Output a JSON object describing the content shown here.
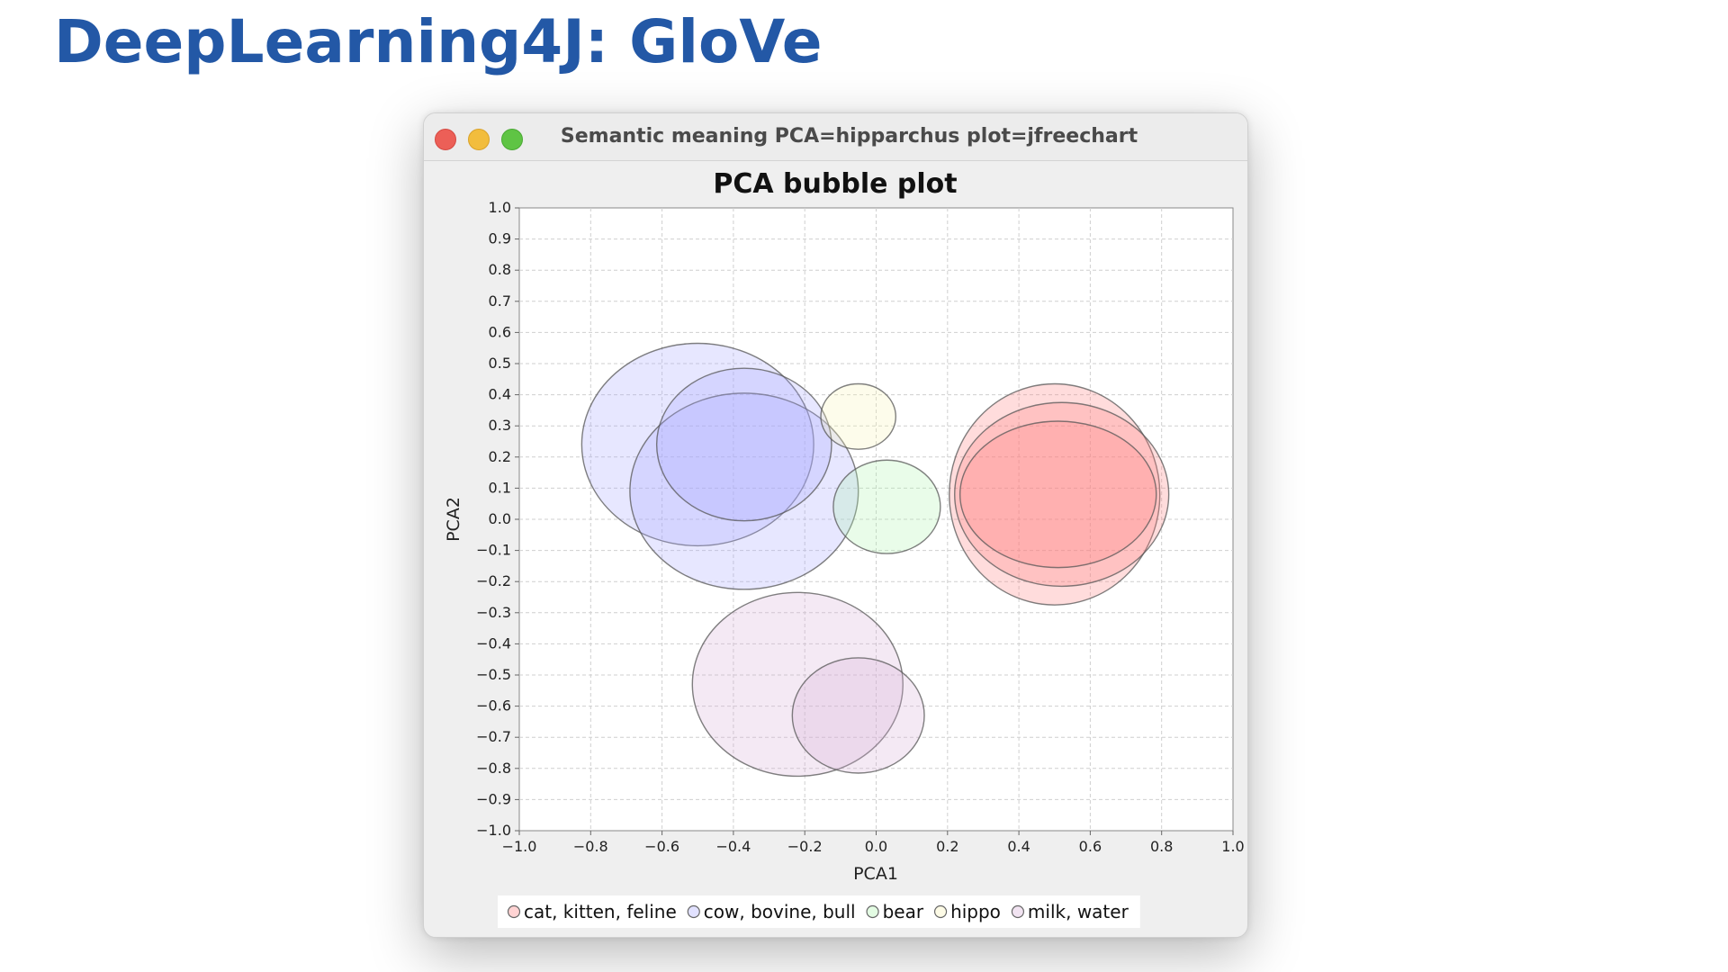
{
  "slide": {
    "title": "DeepLearning4J: GloVe"
  },
  "window": {
    "title": "Semantic meaning PCA=hipparchus plot=jfreechart"
  },
  "chart_data": {
    "type": "bubble",
    "title": "PCA bubble plot",
    "xlabel": "PCA1",
    "ylabel": "PCA2",
    "xlim": [
      -1.0,
      1.0
    ],
    "ylim": [
      -1.0,
      1.0
    ],
    "xticks": [
      "−1.0",
      "−0.8",
      "−0.6",
      "−0.4",
      "−0.2",
      "0.0",
      "0.2",
      "0.4",
      "0.6",
      "0.8",
      "1.0"
    ],
    "yticks": [
      "1.0",
      "0.9",
      "0.8",
      "0.7",
      "0.6",
      "0.5",
      "0.4",
      "0.3",
      "0.2",
      "0.1",
      "0.0",
      "−0.1",
      "−0.2",
      "−0.3",
      "−0.4",
      "−0.5",
      "−0.6",
      "−0.7",
      "−0.8",
      "−0.9",
      "−1.0"
    ],
    "grid": true,
    "legend_position": "bottom",
    "series": [
      {
        "name": "cat, kitten, feline",
        "color": "#ff8080",
        "points": [
          {
            "x": 0.5,
            "y": 0.08,
            "rx": 0.295,
            "ry": 0.355
          },
          {
            "x": 0.52,
            "y": 0.08,
            "rx": 0.3,
            "ry": 0.295
          },
          {
            "x": 0.51,
            "y": 0.08,
            "rx": 0.275,
            "ry": 0.235
          }
        ]
      },
      {
        "name": "cow, bovine, bull",
        "color": "#a8a8ff",
        "points": [
          {
            "x": -0.5,
            "y": 0.24,
            "rx": 0.325,
            "ry": 0.325
          },
          {
            "x": -0.37,
            "y": 0.09,
            "rx": 0.32,
            "ry": 0.315
          },
          {
            "x": -0.37,
            "y": 0.24,
            "rx": 0.245,
            "ry": 0.245
          }
        ]
      },
      {
        "name": "bear",
        "color": "#b0f5b0",
        "points": [
          {
            "x": 0.03,
            "y": 0.04,
            "rx": 0.15,
            "ry": 0.15
          }
        ]
      },
      {
        "name": "hippo",
        "color": "#f8f3b8",
        "points": [
          {
            "x": -0.05,
            "y": 0.33,
            "rx": 0.105,
            "ry": 0.105
          }
        ]
      },
      {
        "name": "milk, water",
        "color": "#d8b0d8",
        "points": [
          {
            "x": -0.22,
            "y": -0.53,
            "rx": 0.295,
            "ry": 0.295
          },
          {
            "x": -0.05,
            "y": -0.63,
            "rx": 0.185,
            "ry": 0.185
          }
        ]
      }
    ]
  }
}
